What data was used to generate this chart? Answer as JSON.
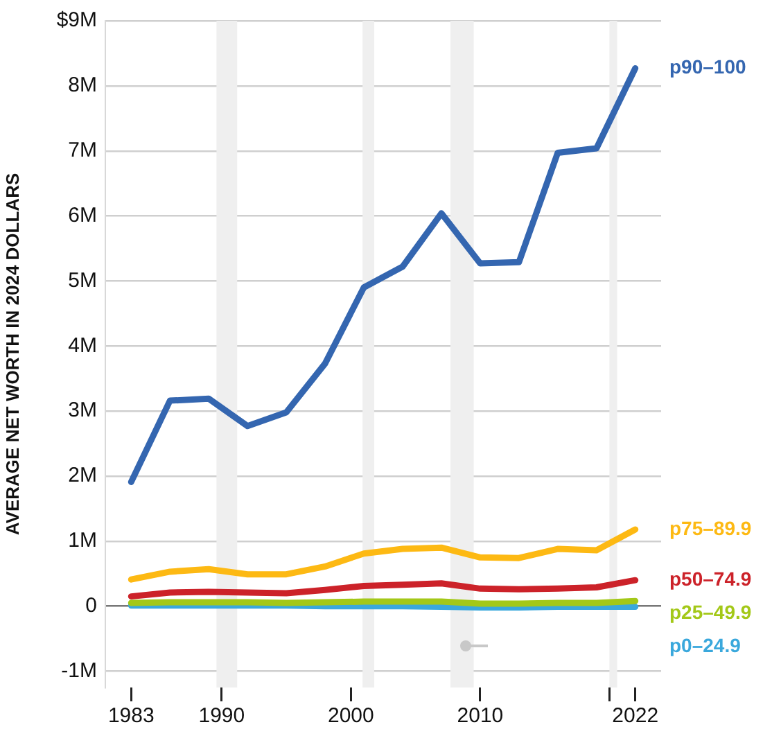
{
  "chart_data": {
    "type": "line",
    "ylabel": "AVERAGE NET WORTH IN 2024 DOLLARS",
    "x": [
      1983,
      1986,
      1989,
      1992,
      1995,
      1998,
      2001,
      2004,
      2007,
      2010,
      2013,
      2016,
      2019,
      2022
    ],
    "series": [
      {
        "name": "p90–100",
        "color": "#3466b0",
        "values": [
          1.91,
          3.16,
          3.19,
          2.77,
          2.98,
          3.73,
          4.9,
          5.22,
          6.04,
          5.27,
          5.29,
          6.97,
          7.04,
          8.27
        ]
      },
      {
        "name": "p75–89.9",
        "color": "#fdb913",
        "values": [
          0.41,
          0.53,
          0.57,
          0.49,
          0.49,
          0.61,
          0.81,
          0.88,
          0.9,
          0.75,
          0.74,
          0.88,
          0.86,
          1.18
        ]
      },
      {
        "name": "p50–74.9",
        "color": "#cc2229",
        "values": [
          0.15,
          0.21,
          0.22,
          0.21,
          0.2,
          0.25,
          0.31,
          0.33,
          0.35,
          0.27,
          0.26,
          0.27,
          0.29,
          0.4
        ]
      },
      {
        "name": "p25–49.9",
        "color": "#a3c818",
        "values": [
          0.05,
          0.06,
          0.06,
          0.06,
          0.05,
          0.06,
          0.07,
          0.07,
          0.07,
          0.04,
          0.04,
          0.05,
          0.05,
          0.08
        ]
      },
      {
        "name": "p0–24.9",
        "color": "#3aa8dc",
        "values": [
          0.01,
          0.01,
          0.01,
          0.01,
          0.01,
          0,
          0,
          0,
          -0.01,
          -0.02,
          -0.02,
          -0.01,
          -0.01,
          -0.01
        ]
      }
    ],
    "xlim": [
      1981,
      2024
    ],
    "xticks": [
      1983,
      1990,
      2000,
      2010,
      {
        "value": 2020,
        "label": null
      },
      2022
    ],
    "ylim": [
      -1.25,
      9
    ],
    "yticks": [
      {
        "value": -1,
        "label": "-1M"
      },
      0,
      {
        "value": 1,
        "label": "1M"
      },
      {
        "value": 2,
        "label": "2M"
      },
      {
        "value": 3,
        "label": "3M"
      },
      {
        "value": 4,
        "label": "4M"
      },
      {
        "value": 5,
        "label": "5M"
      },
      {
        "value": 6,
        "label": "6M"
      },
      {
        "value": 7,
        "label": "7M"
      },
      {
        "value": 8,
        "label": "8M"
      },
      {
        "value": 9,
        "label": "$9M"
      }
    ],
    "bands": [
      {
        "axis": "x",
        "from": 1989.6,
        "to": 1991.2,
        "color": "#efefef"
      },
      {
        "axis": "x",
        "from": 2000.9,
        "to": 2001.8,
        "color": "#efefef"
      },
      {
        "axis": "x",
        "from": 2007.7,
        "to": 2009.5,
        "color": "#efefef"
      },
      {
        "axis": "x",
        "from": 2020.0,
        "to": 2020.6,
        "color": "#efefef"
      }
    ],
    "grid": "y",
    "marker": "none",
    "line_style": "solid"
  }
}
